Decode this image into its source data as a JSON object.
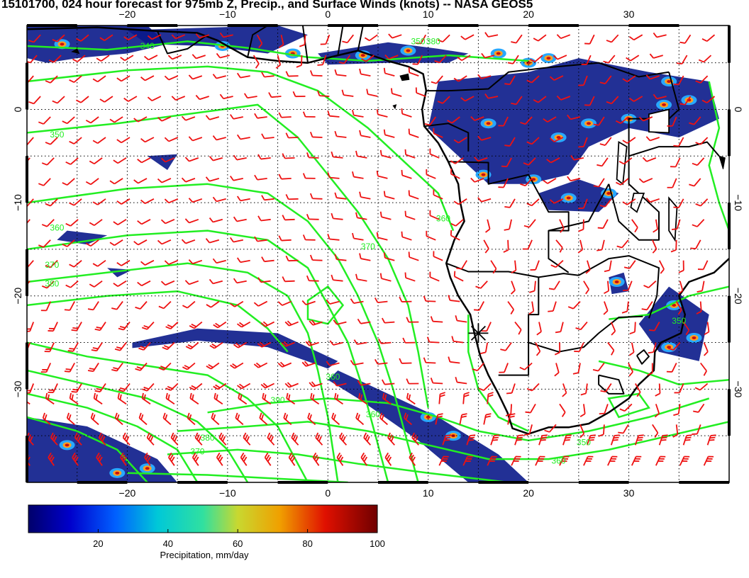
{
  "title": "15101700, 024 hour forecast for 975mb Z, Precip., and Surface Winds (knots) -- NASA GEOS5",
  "map": {
    "lon_range": [
      -30,
      40
    ],
    "lat_range": [
      -40,
      9
    ],
    "lon_ticks": [
      {
        "value": -20,
        "label": "−20"
      },
      {
        "value": -10,
        "label": "−10"
      },
      {
        "value": 0,
        "label": "0"
      },
      {
        "value": 10,
        "label": "10"
      },
      {
        "value": 20,
        "label": "20"
      },
      {
        "value": 30,
        "label": "30"
      }
    ],
    "lat_ticks": [
      {
        "value": 0,
        "label": "0"
      },
      {
        "value": -10,
        "label": "−10"
      },
      {
        "value": -20,
        "label": "−20"
      },
      {
        "value": -30,
        "label": "−30"
      }
    ],
    "grid": "dotted",
    "marker": {
      "lon": 15,
      "lat": -24,
      "symbol": "asterisk"
    },
    "colors": {
      "contour": "#22ee22",
      "wind_barb": "#ee1111",
      "coast": "#000000",
      "precip_low": "#0a1a8a",
      "precip_high": "#c81010"
    },
    "height_contour_labels": [
      "340",
      "350",
      "360",
      "370",
      "380",
      "390"
    ],
    "contour_label_marks": [
      {
        "text": "340",
        "lon": -18,
        "lat": 6.5
      },
      {
        "text": "350",
        "lon": -27,
        "lat": -3
      },
      {
        "text": "360",
        "lon": -27,
        "lat": -13
      },
      {
        "text": "370",
        "lon": -27.5,
        "lat": -17
      },
      {
        "text": "380",
        "lon": -27.5,
        "lat": -19
      },
      {
        "text": "360",
        "lon": 0.5,
        "lat": -29
      },
      {
        "text": "370",
        "lon": 4,
        "lat": -15
      },
      {
        "text": "360",
        "lon": 11.5,
        "lat": -12
      },
      {
        "text": "390",
        "lon": -5,
        "lat": -31.5
      },
      {
        "text": "380",
        "lon": -12,
        "lat": -35.5
      },
      {
        "text": "370",
        "lon": -13,
        "lat": -37
      },
      {
        "text": "360",
        "lon": 4.5,
        "lat": -33
      },
      {
        "text": "350",
        "lon": 25.5,
        "lat": -36
      },
      {
        "text": "360",
        "lon": 23,
        "lat": -38
      },
      {
        "text": "350",
        "lon": 35,
        "lat": -23
      },
      {
        "text": "350",
        "lon": 9,
        "lat": 7
      },
      {
        "text": "380",
        "lon": 10.5,
        "lat": 7
      }
    ]
  },
  "colorbar": {
    "ticks": [
      {
        "value": 20,
        "label": "20"
      },
      {
        "value": 40,
        "label": "40"
      },
      {
        "value": 60,
        "label": "60"
      },
      {
        "value": 80,
        "label": "80"
      },
      {
        "value": 100,
        "label": "100"
      }
    ],
    "min": 0,
    "max": 100,
    "label": "Precipitation, mm/day"
  }
}
